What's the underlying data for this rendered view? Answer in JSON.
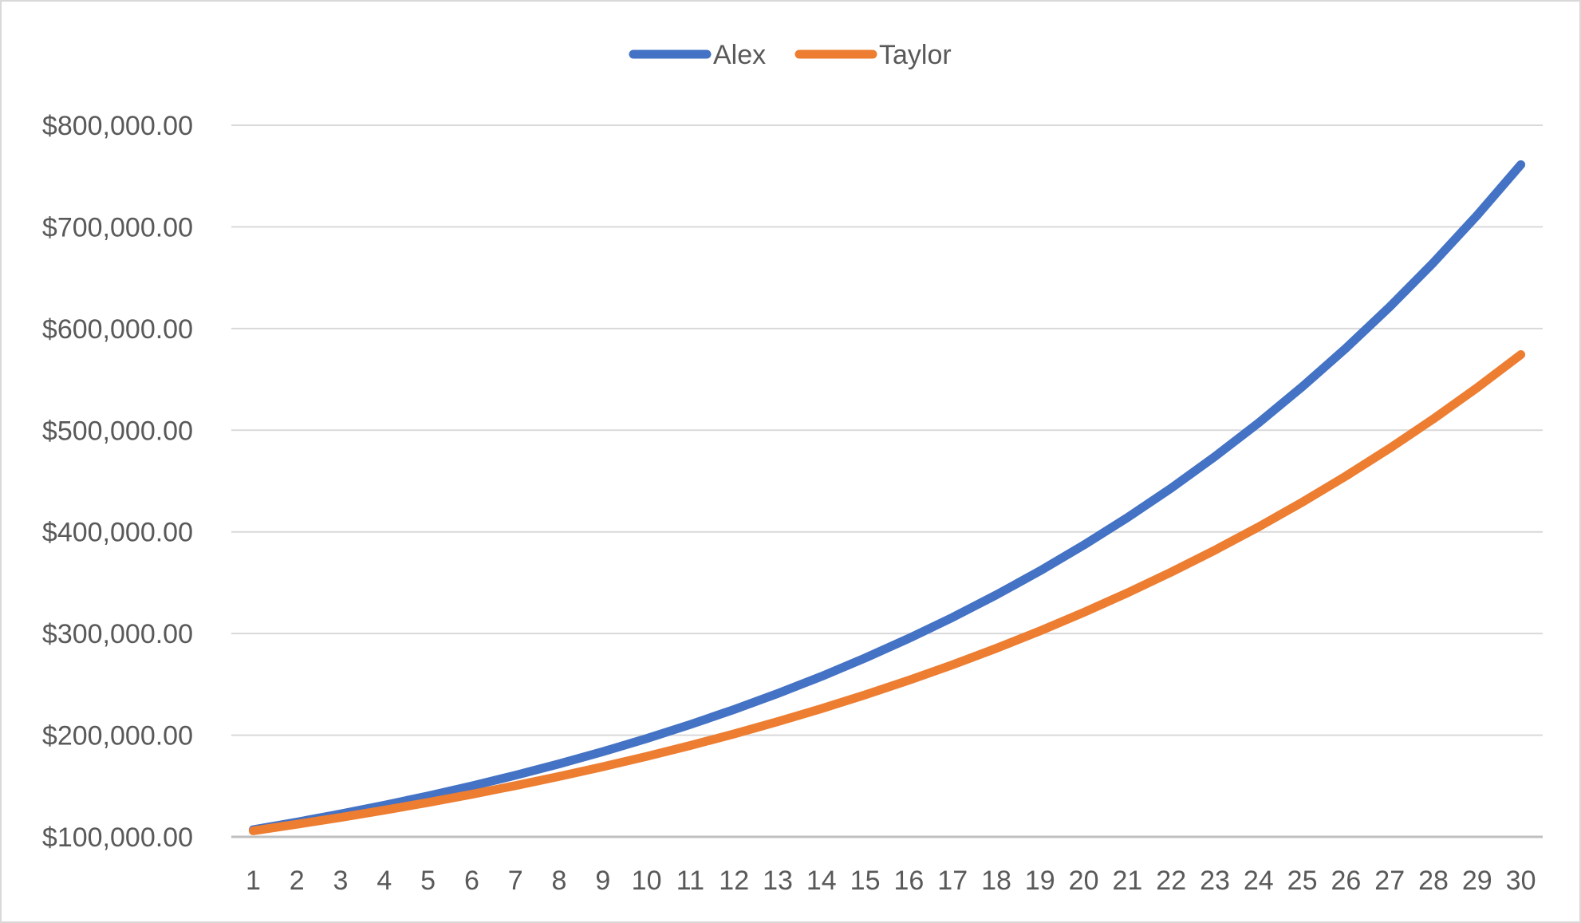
{
  "chart_data": {
    "type": "line",
    "title": "",
    "xlabel": "",
    "ylabel": "",
    "x": [
      1,
      2,
      3,
      4,
      5,
      6,
      7,
      8,
      9,
      10,
      11,
      12,
      13,
      14,
      15,
      16,
      17,
      18,
      19,
      20,
      21,
      22,
      23,
      24,
      25,
      26,
      27,
      28,
      29,
      30
    ],
    "ylim": [
      100000,
      800000
    ],
    "y_ticks": [
      100000,
      200000,
      300000,
      400000,
      500000,
      600000,
      700000,
      800000
    ],
    "y_tick_labels": [
      "$100,000.00",
      "$200,000.00",
      "$300,000.00",
      "$400,000.00",
      "$500,000.00",
      "$600,000.00",
      "$700,000.00",
      "$800,000.00"
    ],
    "grid": true,
    "legend_position": "top-center",
    "series": [
      {
        "name": "Alex",
        "color": "#4472C4",
        "values": [
          107000,
          114490,
          122504,
          131080,
          140255,
          150073,
          160578,
          171819,
          183846,
          196715,
          210485,
          225219,
          240985,
          257853,
          275903,
          295216,
          315881,
          337993,
          361653,
          386968,
          414056,
          443040,
          474053,
          507237,
          542743,
          580735,
          621387,
          664884,
          711426,
          761226
        ]
      },
      {
        "name": "Taylor",
        "color": "#ED7D31",
        "values": [
          106000,
          112360,
          119102,
          126248,
          133823,
          141852,
          150363,
          159385,
          168948,
          179085,
          189830,
          201220,
          213293,
          226090,
          239656,
          254035,
          269277,
          285434,
          302560,
          320714,
          339956,
          360354,
          381975,
          404893,
          429187,
          454938,
          482235,
          511169,
          541839,
          574349
        ]
      }
    ]
  }
}
